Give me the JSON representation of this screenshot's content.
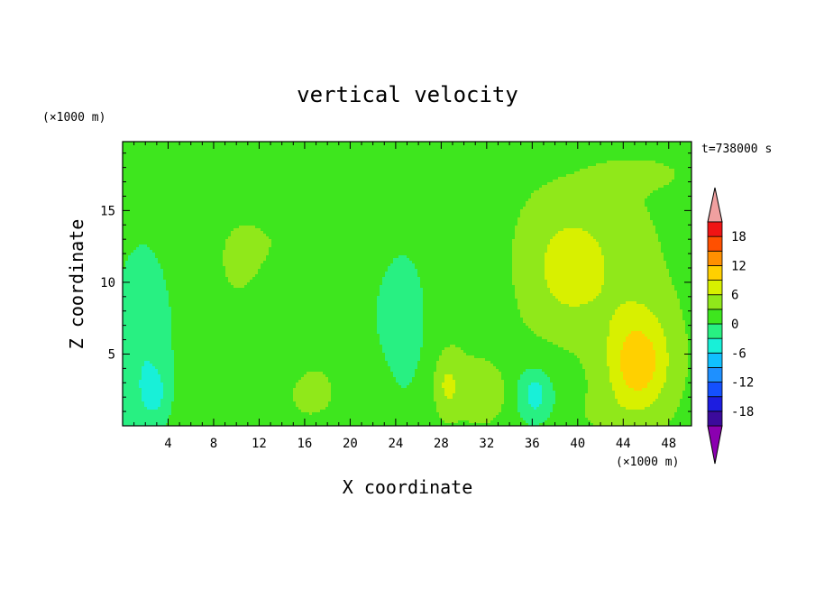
{
  "chart_data": {
    "type": "heatmap",
    "title": "vertical velocity",
    "xlabel": "X coordinate",
    "ylabel": "Z coordinate",
    "x_unit": "(×1000 m)",
    "y_unit": "(×1000 m)",
    "time_label": "t=738000 s",
    "xlim": [
      0,
      50
    ],
    "ylim": [
      0,
      19.8
    ],
    "x_ticks": [
      4,
      8,
      12,
      16,
      20,
      24,
      28,
      32,
      36,
      40,
      44,
      48
    ],
    "y_ticks": [
      5,
      10,
      15
    ],
    "colorbar": {
      "labels": [
        18,
        12,
        6,
        0,
        -6,
        -12,
        -18
      ],
      "levels": [
        -21,
        -18,
        -15,
        -12,
        -9,
        -6,
        -3,
        0,
        3,
        6,
        9,
        12,
        15,
        18,
        21
      ],
      "colors": [
        "#8b00b0",
        "#3b0a9c",
        "#1d1de0",
        "#1450ff",
        "#1e90ff",
        "#10c0ff",
        "#18f0d8",
        "#28f082",
        "#3ee61e",
        "#90e81a",
        "#d8f000",
        "#ffd000",
        "#ff9000",
        "#ff5000",
        "#f01414",
        "#f0a0a0"
      ],
      "extend": "both"
    },
    "background_value": 1.5,
    "features": [
      {
        "x": 45.5,
        "z": 4.6,
        "sx": 2.4,
        "sz": 3.2,
        "amp": 6.0
      },
      {
        "x": 45.2,
        "z": 4.2,
        "sx": 1.4,
        "sz": 1.8,
        "amp": 3.5
      },
      {
        "x": 39.5,
        "z": 10.8,
        "sx": 2.2,
        "sz": 2.6,
        "amp": 4.2
      },
      {
        "x": 43.5,
        "z": 10.5,
        "sx": 3.5,
        "sz": 5.5,
        "amp": 1.5
      },
      {
        "x": 41.5,
        "z": 13.5,
        "sx": 4.5,
        "sz": 3.0,
        "amp": 1.2
      },
      {
        "x": 36.5,
        "z": 10.5,
        "sx": 2.5,
        "sz": 5.5,
        "amp": 1.5
      },
      {
        "x": 36.0,
        "z": 2.2,
        "sx": 1.6,
        "sz": 1.6,
        "amp": -4.5
      },
      {
        "x": 36.3,
        "z": 2.2,
        "sx": 0.5,
        "sz": 0.8,
        "amp": -3.0
      },
      {
        "x": 1.8,
        "z": 5.5,
        "sx": 1.8,
        "sz": 5.0,
        "amp": -4.2
      },
      {
        "x": 2.8,
        "z": 2.3,
        "sx": 0.8,
        "sz": 1.2,
        "amp": -3.5
      },
      {
        "x": 24.5,
        "z": 6.5,
        "sx": 1.8,
        "sz": 4.5,
        "amp": -3.2
      },
      {
        "x": 18.5,
        "z": 10.5,
        "sx": 1.8,
        "sz": 2.2,
        "amp": -1.8
      },
      {
        "x": 14.0,
        "z": 13.0,
        "sx": 4.5,
        "sz": 2.5,
        "amp": 1.3
      },
      {
        "x": 10.0,
        "z": 10.5,
        "sx": 1.8,
        "sz": 3.0,
        "amp": 1.2
      },
      {
        "x": 16.5,
        "z": 6.0,
        "sx": 2.0,
        "sz": 3.0,
        "amp": 1.3
      },
      {
        "x": 16.5,
        "z": 2.0,
        "sx": 1.0,
        "sz": 0.8,
        "amp": 3.0
      },
      {
        "x": 28.5,
        "z": 2.8,
        "sx": 0.8,
        "sz": 1.5,
        "amp": 3.8
      },
      {
        "x": 32.0,
        "z": 2.2,
        "sx": 1.8,
        "sz": 1.4,
        "amp": 3.5
      },
      {
        "x": 29.5,
        "z": 4.0,
        "sx": 2.0,
        "sz": 3.0,
        "amp": 1.2
      },
      {
        "x": 21.5,
        "z": 3.0,
        "sx": 3.0,
        "sz": 1.8,
        "amp": 1.2
      },
      {
        "x": 2.0,
        "z": 16.2,
        "sx": 1.8,
        "sz": 1.1,
        "amp": 1.4
      },
      {
        "x": 25.0,
        "z": 15.5,
        "sx": 1.8,
        "sz": 1.2,
        "amp": 1.3
      },
      {
        "x": 46.0,
        "z": 17.6,
        "sx": 3.5,
        "sz": 0.9,
        "amp": 1.5
      },
      {
        "x": 42.0,
        "z": 1.0,
        "sx": 1.6,
        "sz": 1.0,
        "amp": 1.2
      }
    ]
  }
}
